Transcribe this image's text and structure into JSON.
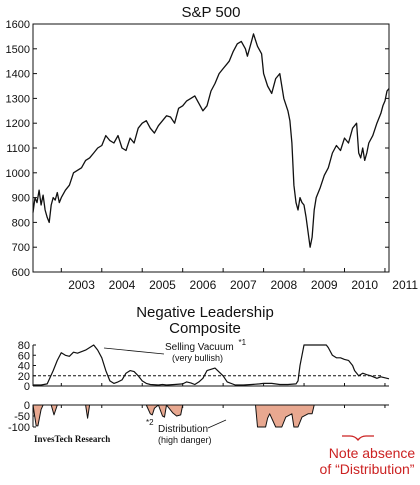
{
  "chart_data": [
    {
      "type": "line",
      "title": "S&P 500",
      "xlabel": "",
      "ylabel": "",
      "ylim": [
        600,
        1600
      ],
      "x_tick_labels": [
        "2003",
        "2004",
        "2005",
        "2006",
        "2007",
        "2008",
        "2009",
        "2010",
        "2011"
      ],
      "y_tick_labels": [
        "600",
        "700",
        "800",
        "900",
        "1000",
        "1100",
        "1200",
        "1300",
        "1400",
        "1500",
        "1600"
      ],
      "y_ticks": [
        600,
        700,
        800,
        900,
        1000,
        1100,
        1200,
        1300,
        1400,
        1500,
        1600
      ],
      "xlim": [
        2002.3,
        2011.1
      ],
      "grid": false,
      "series": [
        {
          "x": [
            2002.3,
            2002.35,
            2002.4,
            2002.45,
            2002.5,
            2002.55,
            2002.6,
            2002.65,
            2002.7,
            2002.75,
            2002.8,
            2002.85,
            2002.9,
            2002.95,
            2003.0,
            2003.1,
            2003.2,
            2003.3,
            2003.4,
            2003.5,
            2003.6,
            2003.7,
            2003.8,
            2003.9,
            2004.0,
            2004.1,
            2004.2,
            2004.3,
            2004.4,
            2004.5,
            2004.6,
            2004.7,
            2004.8,
            2004.9,
            2005.0,
            2005.1,
            2005.2,
            2005.3,
            2005.4,
            2005.5,
            2005.6,
            2005.7,
            2005.8,
            2005.9,
            2006.0,
            2006.1,
            2006.2,
            2006.3,
            2006.4,
            2006.5,
            2006.6,
            2006.7,
            2006.8,
            2006.9,
            2007.0,
            2007.1,
            2007.15,
            2007.25,
            2007.35,
            2007.45,
            2007.55,
            2007.6,
            2007.7,
            2007.75,
            2007.85,
            2007.95,
            2008.0,
            2008.1,
            2008.2,
            2008.3,
            2008.4,
            2008.5,
            2008.6,
            2008.65,
            2008.7,
            2008.75,
            2008.8,
            2008.85,
            2008.9,
            2008.95,
            2009.0,
            2009.05,
            2009.1,
            2009.15,
            2009.2,
            2009.25,
            2009.3,
            2009.4,
            2009.5,
            2009.6,
            2009.7,
            2009.8,
            2009.9,
            2010.0,
            2010.1,
            2010.2,
            2010.3,
            2010.35,
            2010.4,
            2010.45,
            2010.5,
            2010.55,
            2010.6,
            2010.7,
            2010.8,
            2010.9,
            2010.95,
            2011.0,
            2011.05,
            2011.1
          ],
          "y": [
            840,
            900,
            880,
            930,
            870,
            910,
            850,
            820,
            800,
            870,
            900,
            890,
            920,
            880,
            900,
            930,
            950,
            1000,
            1010,
            1020,
            1050,
            1060,
            1080,
            1100,
            1110,
            1150,
            1130,
            1120,
            1150,
            1100,
            1090,
            1140,
            1120,
            1180,
            1200,
            1210,
            1180,
            1160,
            1190,
            1210,
            1230,
            1225,
            1200,
            1260,
            1270,
            1290,
            1300,
            1310,
            1280,
            1250,
            1270,
            1330,
            1360,
            1400,
            1420,
            1440,
            1450,
            1490,
            1520,
            1530,
            1500,
            1470,
            1530,
            1560,
            1510,
            1480,
            1400,
            1350,
            1320,
            1380,
            1400,
            1300,
            1250,
            1210,
            1120,
            950,
            880,
            850,
            900,
            880,
            870,
            820,
            760,
            700,
            740,
            850,
            900,
            940,
            990,
            1020,
            1080,
            1110,
            1090,
            1140,
            1120,
            1180,
            1200,
            1080,
            1060,
            1100,
            1050,
            1080,
            1120,
            1150,
            1200,
            1240,
            1270,
            1290,
            1330,
            1340
          ]
        }
      ]
    },
    {
      "type": "line",
      "title": "Negative Leadership Composite",
      "title_lines": [
        "Negative Leadership",
        "Composite"
      ],
      "xlabel": "",
      "ylabel": "",
      "ylim": [
        0,
        80
      ],
      "y_tick_labels": [
        "80",
        "60",
        "40",
        "20",
        "0"
      ],
      "y_ticks": [
        80,
        60,
        40,
        20,
        0
      ],
      "xlim": [
        2002.3,
        2011.1
      ],
      "dashed_threshold": 20,
      "series": [
        {
          "x": [
            2002.3,
            2002.5,
            2002.65,
            2002.8,
            2002.9,
            2003.0,
            2003.1,
            2003.2,
            2003.3,
            2003.4,
            2003.6,
            2003.8,
            2003.9,
            2004.0,
            2004.1,
            2004.2,
            2004.3,
            2004.4,
            2004.5,
            2004.6,
            2004.7,
            2004.8,
            2004.9,
            2005.0,
            2005.1,
            2005.2,
            2005.4,
            2005.5,
            2005.6,
            2005.8,
            2006.0,
            2006.1,
            2006.2,
            2006.3,
            2006.4,
            2006.5,
            2006.6,
            2006.8,
            2007.0,
            2007.1,
            2007.3,
            2007.5,
            2007.7,
            2007.9,
            2008.0,
            2008.2,
            2008.4,
            2008.6,
            2008.8,
            2008.85,
            2008.9,
            2009.0,
            2009.1,
            2009.3,
            2009.45,
            2009.55,
            2009.6,
            2009.7,
            2009.8,
            2009.9,
            2010.0,
            2010.1,
            2010.2,
            2010.25,
            2010.35,
            2010.45,
            2010.55,
            2010.65,
            2010.8,
            2010.9,
            2011.0,
            2011.1
          ],
          "y": [
            2,
            2,
            4,
            30,
            50,
            65,
            60,
            58,
            66,
            64,
            70,
            80,
            70,
            55,
            30,
            10,
            5,
            8,
            12,
            25,
            30,
            28,
            20,
            10,
            5,
            3,
            2,
            3,
            2,
            3,
            4,
            8,
            6,
            3,
            8,
            15,
            30,
            35,
            20,
            8,
            2,
            2,
            3,
            4,
            5,
            5,
            3,
            3,
            4,
            10,
            40,
            80,
            80,
            80,
            80,
            80,
            75,
            60,
            55,
            55,
            52,
            50,
            40,
            30,
            20,
            25,
            22,
            20,
            15,
            18,
            16,
            14
          ]
        }
      ]
    },
    {
      "type": "area",
      "title": "",
      "xlabel": "",
      "ylabel": "",
      "ylim": [
        -100,
        0
      ],
      "y_tick_labels": [
        "0",
        "-50",
        "-100"
      ],
      "y_ticks": [
        0,
        -50,
        -100
      ],
      "xlim": [
        2002.3,
        2011.1
      ],
      "series": [
        {
          "x": [
            2002.3,
            2002.38,
            2002.42,
            2002.5,
            2002.55,
            2002.58,
            2002.75,
            2002.82,
            2002.9,
            2003.6,
            2003.65,
            2003.7,
            2005.1,
            2005.2,
            2005.25,
            2005.3,
            2005.4,
            2005.5,
            2005.55,
            2005.6,
            2005.75,
            2005.85,
            2005.95,
            2006.0,
            2006.05,
            2007.8,
            2007.85,
            2008.05,
            2008.1,
            2008.15,
            2008.3,
            2008.45,
            2008.55,
            2008.7,
            2008.75,
            2008.85,
            2008.95,
            2009.1,
            2009.2,
            2009.25
          ],
          "y": [
            0,
            -95,
            -95,
            -20,
            0,
            0,
            0,
            -45,
            0,
            0,
            -60,
            0,
            0,
            -40,
            -45,
            -15,
            0,
            -50,
            -55,
            0,
            -35,
            -50,
            -45,
            0,
            0,
            0,
            -100,
            -100,
            -60,
            -40,
            -100,
            -100,
            -55,
            -40,
            -100,
            -100,
            -55,
            -40,
            -40,
            0
          ]
        }
      ]
    }
  ],
  "annotations": {
    "selling_vacuum_line1": "Selling Vacuum",
    "selling_vacuum_sup": "*1",
    "selling_vacuum_line2": "(very bullish)",
    "distribution_sup": "*2",
    "distribution_line1": "Distribution",
    "distribution_line2": "(high danger)",
    "source": "InvesTech Research",
    "note_line1": "Note absence",
    "note_line2": "of “Distribution”"
  },
  "colors": {
    "line": "#111111",
    "distribution_fill": "#e8a890",
    "note_text": "#cc2222"
  }
}
